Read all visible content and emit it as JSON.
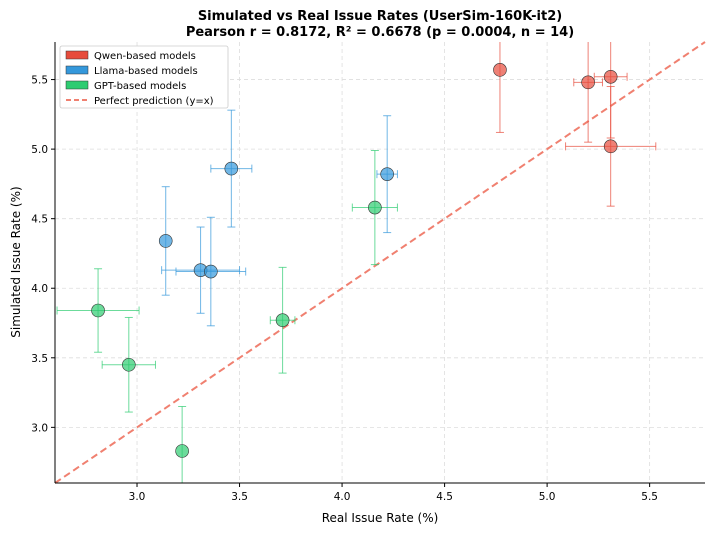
{
  "chart_data": {
    "type": "scatter",
    "title": "Simulated vs Real Issue Rates (UserSim-160K-it2)",
    "subtitle": "Pearson r = 0.8172, R² = 0.6678 (p = 0.0004, n = 14)",
    "xlabel": "Real Issue Rate (%)",
    "ylabel": "Simulated Issue Rate (%)",
    "xlim": [
      2.6,
      5.77
    ],
    "ylim": [
      2.6,
      5.77
    ],
    "xticks": [
      3.0,
      3.5,
      4.0,
      4.5,
      5.0,
      5.5
    ],
    "yticks": [
      3.0,
      3.5,
      4.0,
      4.5,
      5.0,
      5.5
    ],
    "xtick_labels": [
      "3.0",
      "3.5",
      "4.0",
      "4.5",
      "5.0",
      "5.5"
    ],
    "ytick_labels": [
      "3.0",
      "3.5",
      "4.0",
      "4.5",
      "5.0",
      "5.5"
    ],
    "grid": true,
    "legend_position": "top-left",
    "series": [
      {
        "name": "Qwen-based models",
        "color": "#e74c3c",
        "points": [
          {
            "x": 4.77,
            "y": 5.57,
            "xerr": 0.0,
            "yerr": 0.45
          },
          {
            "x": 5.2,
            "y": 5.48,
            "xerr": 0.07,
            "yerr": 0.43
          },
          {
            "x": 5.31,
            "y": 5.52,
            "xerr": 0.08,
            "yerr": 0.44
          },
          {
            "x": 5.31,
            "y": 5.02,
            "xerr": 0.22,
            "yerr": 0.43
          }
        ]
      },
      {
        "name": "Llama-based models",
        "color": "#3498db",
        "points": [
          {
            "x": 3.14,
            "y": 4.34,
            "xerr": 0.0,
            "yerr": 0.39
          },
          {
            "x": 3.31,
            "y": 4.13,
            "xerr": 0.19,
            "yerr": 0.31
          },
          {
            "x": 3.36,
            "y": 4.12,
            "xerr": 0.17,
            "yerr": 0.39
          },
          {
            "x": 3.46,
            "y": 4.86,
            "xerr": 0.1,
            "yerr": 0.42
          },
          {
            "x": 4.22,
            "y": 4.82,
            "xerr": 0.05,
            "yerr": 0.42
          }
        ]
      },
      {
        "name": "GPT-based models",
        "color": "#2ecc71",
        "points": [
          {
            "x": 2.81,
            "y": 3.84,
            "xerr": 0.2,
            "yerr": 0.3
          },
          {
            "x": 2.96,
            "y": 3.45,
            "xerr": 0.13,
            "yerr": 0.34
          },
          {
            "x": 3.22,
            "y": 2.83,
            "xerr": 0.0,
            "yerr": 0.32
          },
          {
            "x": 3.71,
            "y": 3.77,
            "xerr": 0.06,
            "yerr": 0.38
          },
          {
            "x": 4.16,
            "y": 4.58,
            "xerr": 0.11,
            "yerr": 0.41
          }
        ]
      }
    ],
    "reference_line": {
      "name": "Perfect prediction (y=x)",
      "color": "#f08070",
      "style": "dashed"
    }
  }
}
